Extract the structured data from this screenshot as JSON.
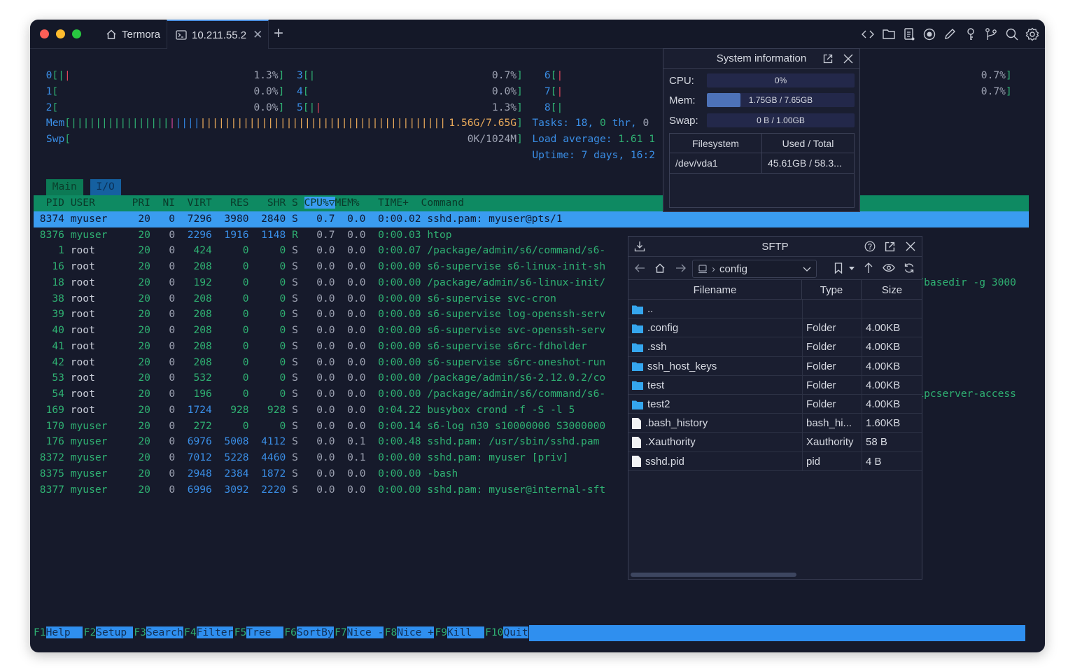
{
  "window": {
    "tabs": [
      {
        "label": "Termora",
        "icon": "home-icon"
      },
      {
        "label": "10.211.55.2",
        "icon": "terminal-icon",
        "active": true
      }
    ],
    "toolbar_icons": [
      "code-icon",
      "folder-icon",
      "document-icon",
      "record-icon",
      "pencil-icon",
      "key-icon",
      "git-branch-icon",
      "search-icon",
      "gear-icon"
    ]
  },
  "htop": {
    "cpus": [
      {
        "id": "0",
        "bars": [
          [
            "g",
            1
          ],
          [
            "r",
            1
          ]
        ],
        "pct": "1.3%"
      },
      {
        "id": "1",
        "bars": [],
        "pct": "0.0%"
      },
      {
        "id": "2",
        "bars": [],
        "pct": "0.0%"
      },
      {
        "id": "3",
        "bars": [
          [
            "g",
            1
          ]
        ],
        "pct": "0.7%"
      },
      {
        "id": "4",
        "bars": [],
        "pct": "0.0%"
      },
      {
        "id": "5",
        "bars": [
          [
            "g",
            1
          ],
          [
            "r",
            1
          ]
        ],
        "pct": "1.3%"
      },
      {
        "id": "6",
        "bars": [
          [
            "r",
            1
          ]
        ],
        "pct": "0.7%"
      },
      {
        "id": "7",
        "bars": [
          [
            "r",
            1
          ]
        ],
        "pct": "0.7%"
      },
      {
        "id": "8",
        "bars": [
          [
            "g",
            1
          ]
        ],
        "pct": ""
      }
    ],
    "mem": {
      "label": "Mem",
      "segments": [
        [
          "g",
          16
        ],
        [
          "m",
          1
        ],
        [
          "db",
          4
        ],
        [
          "o",
          40
        ]
      ],
      "value": "1.56G/7.65G"
    },
    "swp": {
      "label": "Swp",
      "value": "0K/1024M"
    },
    "tasks": {
      "label": "Tasks: ",
      "count": "18",
      "sep1": ", ",
      "thr": "0",
      "thr_label": " thr, ",
      "kthr": "0"
    },
    "load": {
      "label": "Load average: ",
      "value": "1.61 1"
    },
    "uptime": {
      "label": "Uptime: ",
      "value": "7 days, 16:2"
    },
    "view_tabs": [
      "Main",
      "I/O"
    ],
    "columns": {
      "pid": "PID",
      "user": "USER",
      "pri": "PRI",
      "ni": "NI",
      "virt": "VIRT",
      "res": "RES",
      "shr": "SHR",
      "s": "S",
      "cpu": "CPU%▽",
      "mem": "MEM%",
      "time": "TIME+",
      "cmd": "Command"
    },
    "processes": [
      {
        "pid": "8374",
        "user": "myuser",
        "pri": "20",
        "ni": "0",
        "virt": "7296",
        "res": "3980",
        "shr": "2840",
        "s": "S",
        "cpu": "0.7",
        "mem": "0.0",
        "time": "0:00.02",
        "cmd": "sshd.pam: myuser@pts/1",
        "selected": true
      },
      {
        "pid": "8376",
        "user": "myuser",
        "pri": "20",
        "ni": "0",
        "virt": "2296",
        "res": "1916",
        "shr": "1148",
        "s": "R",
        "cpu": "0.7",
        "mem": "0.0",
        "time": "0:00.03",
        "cmd": "htop"
      },
      {
        "pid": "1",
        "user": "root",
        "pri": "20",
        "ni": "0",
        "virt": "424",
        "res": "0",
        "shr": "0",
        "s": "S",
        "cpu": "0.0",
        "mem": "0.0",
        "time": "0:00.07",
        "cmd": "/package/admin/s6/command/s6-"
      },
      {
        "pid": "16",
        "user": "root",
        "pri": "20",
        "ni": "0",
        "virt": "208",
        "res": "0",
        "shr": "0",
        "s": "S",
        "cpu": "0.0",
        "mem": "0.0",
        "time": "0:00.00",
        "cmd": "s6-supervise s6-linux-init-sh"
      },
      {
        "pid": "18",
        "user": "root",
        "pri": "20",
        "ni": "0",
        "virt": "192",
        "res": "0",
        "shr": "0",
        "s": "S",
        "cpu": "0.0",
        "mem": "0.0",
        "time": "0:00.00",
        "cmd": "/package/admin/s6-linux-init/"
      },
      {
        "pid": "38",
        "user": "root",
        "pri": "20",
        "ni": "0",
        "virt": "208",
        "res": "0",
        "shr": "0",
        "s": "S",
        "cpu": "0.0",
        "mem": "0.0",
        "time": "0:00.00",
        "cmd": "s6-supervise svc-cron"
      },
      {
        "pid": "39",
        "user": "root",
        "pri": "20",
        "ni": "0",
        "virt": "208",
        "res": "0",
        "shr": "0",
        "s": "S",
        "cpu": "0.0",
        "mem": "0.0",
        "time": "0:00.00",
        "cmd": "s6-supervise log-openssh-serv"
      },
      {
        "pid": "40",
        "user": "root",
        "pri": "20",
        "ni": "0",
        "virt": "208",
        "res": "0",
        "shr": "0",
        "s": "S",
        "cpu": "0.0",
        "mem": "0.0",
        "time": "0:00.00",
        "cmd": "s6-supervise svc-openssh-serv"
      },
      {
        "pid": "41",
        "user": "root",
        "pri": "20",
        "ni": "0",
        "virt": "208",
        "res": "0",
        "shr": "0",
        "s": "S",
        "cpu": "0.0",
        "mem": "0.0",
        "time": "0:00.00",
        "cmd": "s6-supervise s6rc-fdholder"
      },
      {
        "pid": "42",
        "user": "root",
        "pri": "20",
        "ni": "0",
        "virt": "208",
        "res": "0",
        "shr": "0",
        "s": "S",
        "cpu": "0.0",
        "mem": "0.0",
        "time": "0:00.00",
        "cmd": "s6-supervise s6rc-oneshot-run"
      },
      {
        "pid": "53",
        "user": "root",
        "pri": "20",
        "ni": "0",
        "virt": "532",
        "res": "0",
        "shr": "0",
        "s": "S",
        "cpu": "0.0",
        "mem": "0.0",
        "time": "0:00.00",
        "cmd": "/package/admin/s6-2.12.0.2/co"
      },
      {
        "pid": "54",
        "user": "root",
        "pri": "20",
        "ni": "0",
        "virt": "196",
        "res": "0",
        "shr": "0",
        "s": "S",
        "cpu": "0.0",
        "mem": "0.0",
        "time": "0:00.00",
        "cmd": "/package/admin/s6/command/s6-"
      },
      {
        "pid": "169",
        "user": "root",
        "pri": "20",
        "ni": "0",
        "virt": "1724",
        "res": "928",
        "shr": "928",
        "s": "S",
        "cpu": "0.0",
        "mem": "0.0",
        "time": "0:04.22",
        "cmd": "busybox crond -f -S -l 5"
      },
      {
        "pid": "170",
        "user": "myuser",
        "pri": "20",
        "ni": "0",
        "virt": "272",
        "res": "0",
        "shr": "0",
        "s": "S",
        "cpu": "0.0",
        "mem": "0.0",
        "time": "0:00.14",
        "cmd": "s6-log n30 s10000000 S3000000"
      },
      {
        "pid": "176",
        "user": "myuser",
        "pri": "20",
        "ni": "0",
        "virt": "6976",
        "res": "5008",
        "shr": "4112",
        "s": "S",
        "cpu": "0.0",
        "mem": "0.1",
        "time": "0:00.48",
        "cmd": "sshd.pam: /usr/sbin/sshd.pam"
      },
      {
        "pid": "8372",
        "user": "myuser",
        "pri": "20",
        "ni": "0",
        "virt": "7012",
        "res": "5228",
        "shr": "4460",
        "s": "S",
        "cpu": "0.0",
        "mem": "0.1",
        "time": "0:00.00",
        "cmd": "sshd.pam: myuser [priv]"
      },
      {
        "pid": "8375",
        "user": "myuser",
        "pri": "20",
        "ni": "0",
        "virt": "2948",
        "res": "2384",
        "shr": "1872",
        "s": "S",
        "cpu": "0.0",
        "mem": "0.0",
        "time": "0:00.00",
        "cmd": "-bash"
      },
      {
        "pid": "8377",
        "user": "myuser",
        "pri": "20",
        "ni": "0",
        "virt": "6996",
        "res": "3092",
        "shr": "2220",
        "s": "S",
        "cpu": "0.0",
        "mem": "0.0",
        "time": "0:00.00",
        "cmd": "sshd.pam: myuser@internal-sft"
      }
    ],
    "overflow_text": [
      "/basedir -g 3000",
      "ipcserver-access"
    ],
    "function_keys": [
      {
        "key": "F1",
        "label": "Help  "
      },
      {
        "key": "F2",
        "label": "Setup "
      },
      {
        "key": "F3",
        "label": "Search"
      },
      {
        "key": "F4",
        "label": "Filter"
      },
      {
        "key": "F5",
        "label": "Tree  "
      },
      {
        "key": "F6",
        "label": "SortBy"
      },
      {
        "key": "F7",
        "label": "Nice -"
      },
      {
        "key": "F8",
        "label": "Nice +"
      },
      {
        "key": "F9",
        "label": "Kill  "
      },
      {
        "key": "F10",
        "label": "Quit"
      }
    ]
  },
  "sysinfo": {
    "title": "System information",
    "cpu_label": "CPU:",
    "cpu_value": "0%",
    "cpu_fraction": 0,
    "mem_label": "Mem:",
    "mem_value": "1.75GB / 7.65GB",
    "mem_fraction": 0.229,
    "swap_label": "Swap:",
    "swap_value": "0 B / 1.00GB",
    "swap_fraction": 0,
    "fs_headers": [
      "Filesystem",
      "Used / Total"
    ],
    "fs_rows": [
      [
        "/dev/vda1",
        "45.61GB / 58.3..."
      ]
    ]
  },
  "sftp": {
    "title": "SFTP",
    "path": "config",
    "headers": [
      "Filename",
      "Type",
      "Size"
    ],
    "files": [
      {
        "name": "..",
        "type": "",
        "size": "",
        "folder": true
      },
      {
        "name": ".config",
        "type": "Folder",
        "size": "4.00KB",
        "folder": true
      },
      {
        "name": ".ssh",
        "type": "Folder",
        "size": "4.00KB",
        "folder": true
      },
      {
        "name": "ssh_host_keys",
        "type": "Folder",
        "size": "4.00KB",
        "folder": true
      },
      {
        "name": "test",
        "type": "Folder",
        "size": "4.00KB",
        "folder": true
      },
      {
        "name": "test2",
        "type": "Folder",
        "size": "4.00KB",
        "folder": true
      },
      {
        "name": ".bash_history",
        "type": "bash_hi...",
        "size": "1.60KB",
        "folder": false
      },
      {
        "name": ".Xauthority",
        "type": "Xauthority",
        "size": "58 B",
        "folder": false
      },
      {
        "name": "sshd.pid",
        "type": "pid",
        "size": "4 B",
        "folder": false
      }
    ]
  }
}
